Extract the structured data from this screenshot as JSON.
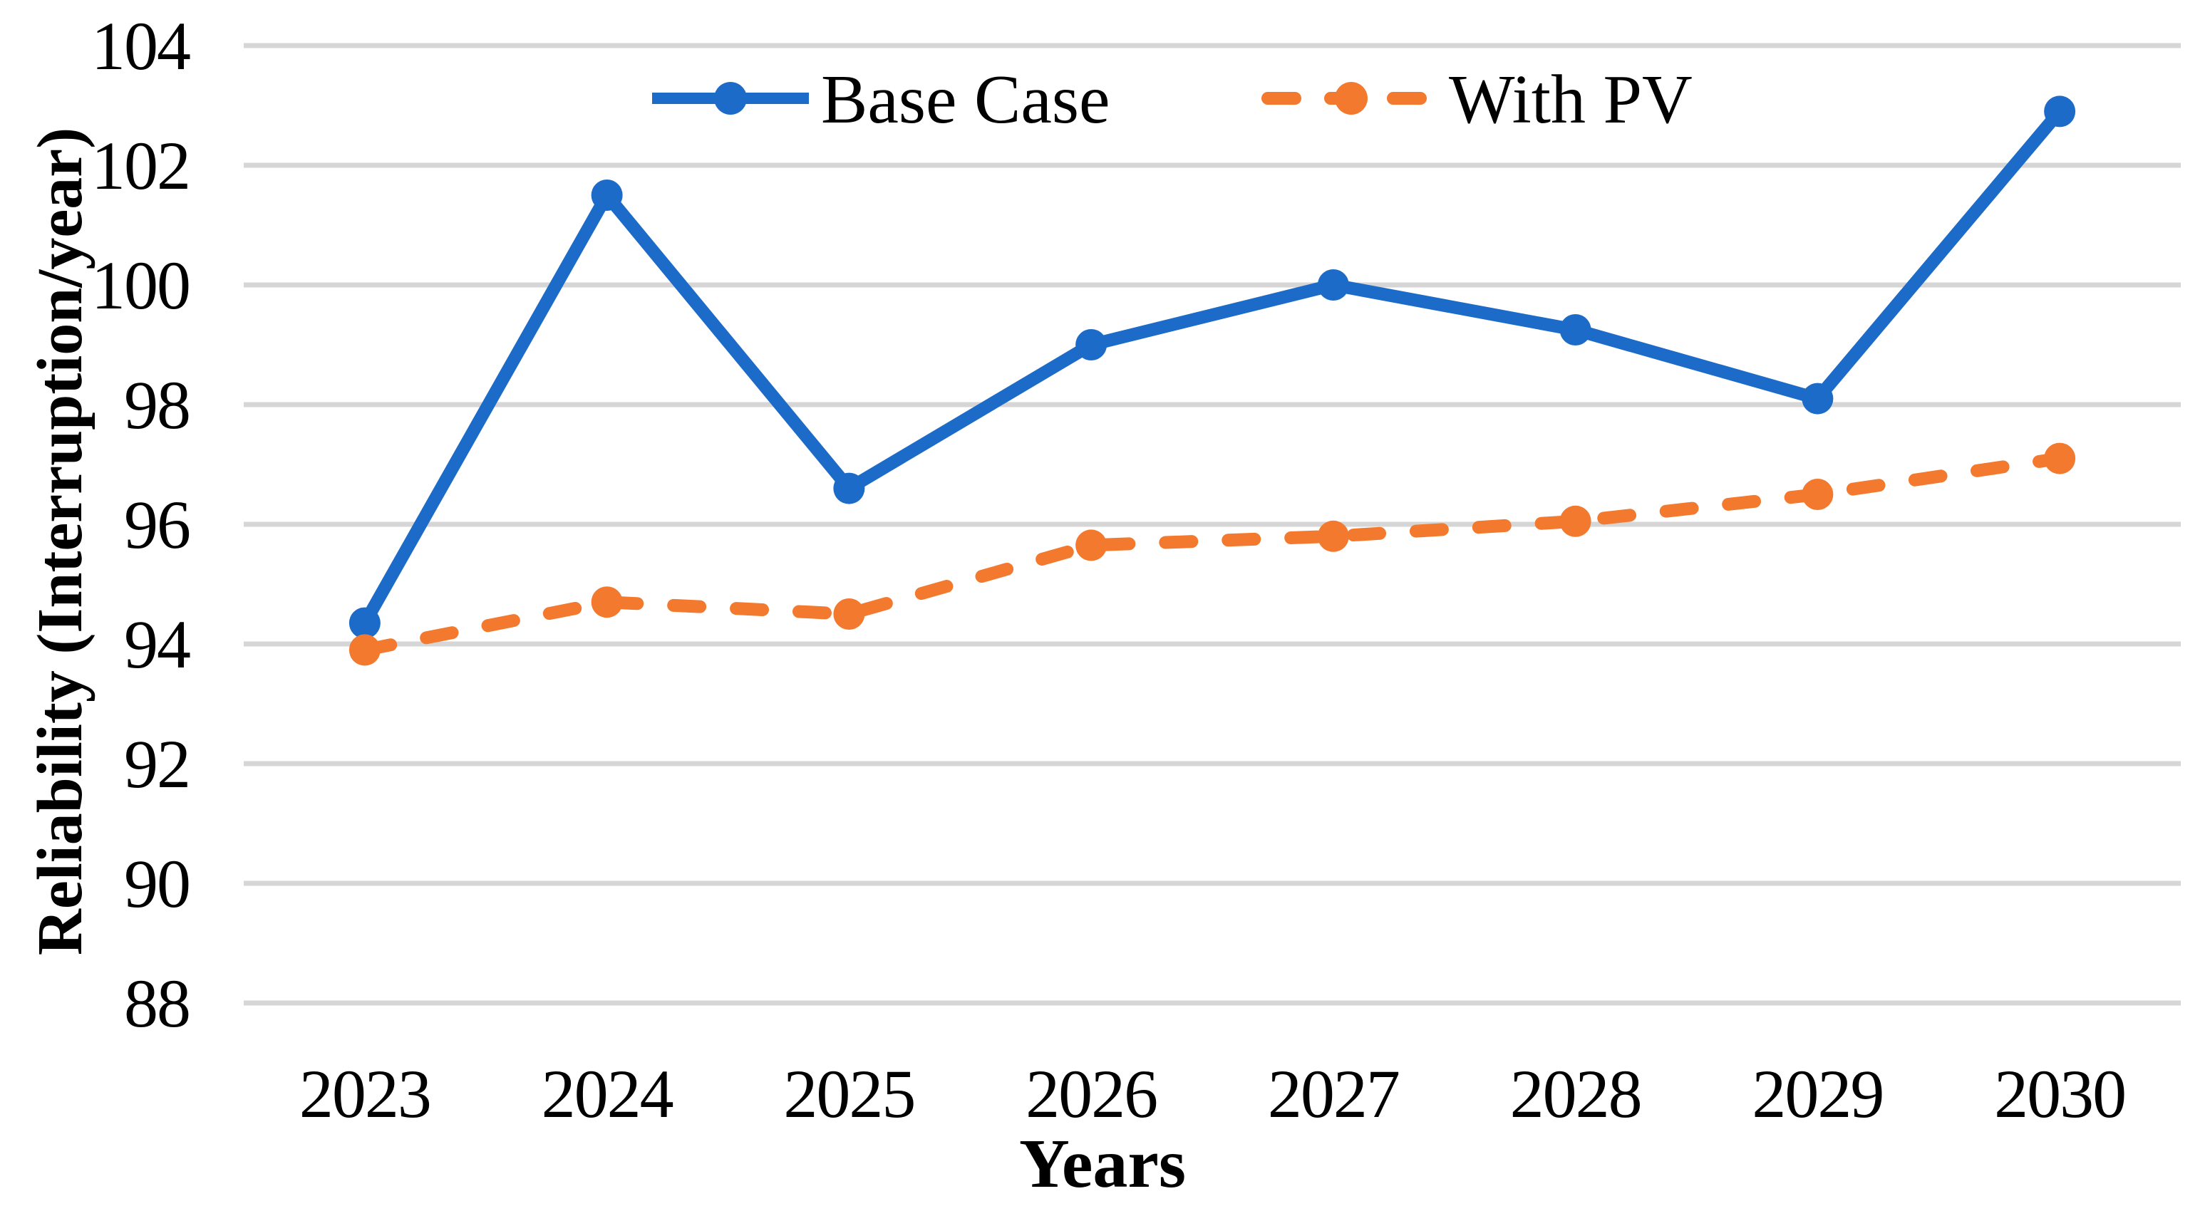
{
  "figure": {
    "background_color": "#ffffff",
    "text_color": "#000000"
  },
  "chart_data": {
    "type": "line",
    "title": "",
    "xlabel": "Years",
    "ylabel": "Reliability (Interruption/year)",
    "categories": [
      "2023",
      "2024",
      "2025",
      "2026",
      "2027",
      "2028",
      "2029",
      "2030"
    ],
    "series": [
      {
        "name": "Base Case",
        "color": "#1C6BC8",
        "line_style": "solid",
        "marker": "circle",
        "values": [
          94.35,
          101.5,
          96.6,
          99.0,
          100.0,
          99.25,
          98.1,
          102.9
        ]
      },
      {
        "name": "With PV",
        "color": "#F2792D",
        "line_style": "dashed",
        "marker": "circle",
        "values": [
          93.9,
          94.7,
          94.5,
          95.65,
          95.8,
          96.05,
          96.5,
          97.1
        ]
      }
    ],
    "ylim": [
      88,
      104
    ],
    "ytick_step": 2,
    "yticks": [
      104,
      102,
      100,
      98,
      96,
      94,
      92,
      90,
      88
    ],
    "grid": "horizontal",
    "gridline_color": "#D6D6D6",
    "legend_position": "top-center"
  }
}
